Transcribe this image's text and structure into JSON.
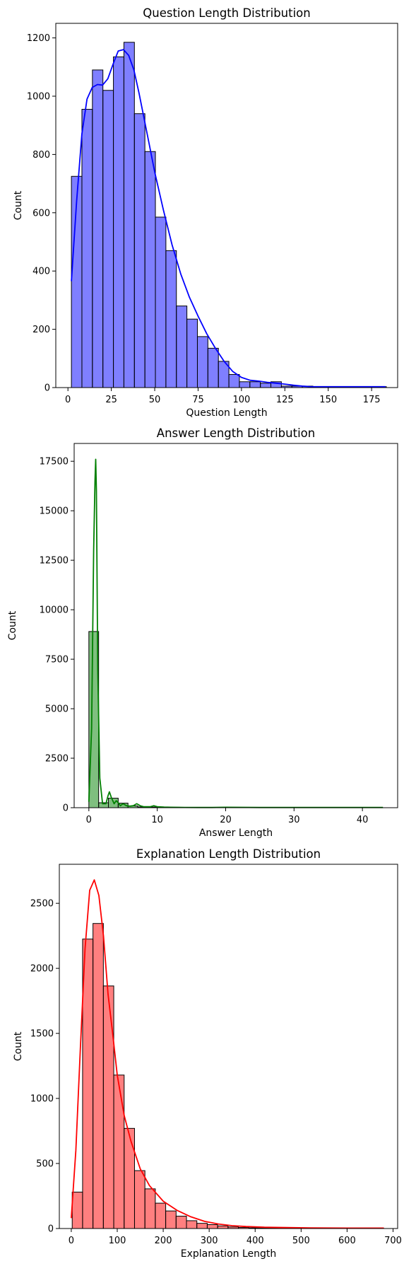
{
  "chart_data": [
    {
      "type": "bar",
      "title": "Question Length Distribution",
      "xlabel": "Question Length",
      "ylabel": "Count",
      "xlim": [
        -7,
        190
      ],
      "ylim": [
        0,
        1250
      ],
      "xticks": [
        0,
        25,
        50,
        75,
        100,
        125,
        150,
        175
      ],
      "yticks": [
        0,
        200,
        400,
        600,
        800,
        1000,
        1200
      ],
      "bin_start": 2,
      "bin_width": 6.05,
      "values": [
        725,
        955,
        1090,
        1020,
        1135,
        1185,
        940,
        810,
        585,
        470,
        280,
        235,
        175,
        135,
        90,
        45,
        20,
        20,
        15,
        20,
        5,
        5,
        5,
        3,
        3,
        3,
        2,
        3,
        3,
        3
      ],
      "color": "#0000ff",
      "kde": {
        "x": [
          2,
          5,
          8,
          11,
          14,
          17,
          20,
          23,
          26,
          29,
          32,
          35,
          38,
          41,
          44,
          47,
          50,
          55,
          60,
          65,
          70,
          75,
          80,
          85,
          90,
          95,
          100,
          105,
          110,
          115,
          120,
          125,
          130,
          135,
          140,
          150,
          160,
          170,
          183
        ],
        "y": [
          365,
          640,
          870,
          990,
          1030,
          1040,
          1038,
          1060,
          1110,
          1155,
          1160,
          1140,
          1090,
          1010,
          920,
          830,
          740,
          610,
          490,
          390,
          310,
          245,
          185,
          135,
          90,
          55,
          35,
          25,
          22,
          18,
          15,
          12,
          8,
          5,
          3,
          3,
          3,
          3,
          3
        ]
      }
    },
    {
      "type": "bar",
      "title": "Answer Length Distribution",
      "xlabel": "Answer Length",
      "ylabel": "Count",
      "xlim": [
        -2.15,
        45.15
      ],
      "ylim": [
        0,
        18400
      ],
      "xticks": [
        0,
        10,
        20,
        30,
        40
      ],
      "yticks": [
        0,
        2500,
        5000,
        7500,
        10000,
        12500,
        15000,
        17500
      ],
      "bin_start": 0,
      "bin_width": 1.43,
      "values": [
        8900,
        250,
        480,
        230,
        90,
        40,
        30,
        15,
        10,
        8,
        5,
        4,
        3,
        3,
        2,
        2,
        2,
        2,
        1,
        1,
        1,
        1,
        1,
        1,
        1,
        1,
        1,
        1,
        1,
        1
      ],
      "color": "#008000",
      "kde": {
        "x": [
          0,
          0.4,
          0.7,
          0.9,
          1.0,
          1.1,
          1.3,
          1.6,
          2.0,
          2.5,
          2.8,
          3.0,
          3.3,
          3.7,
          4.0,
          4.3,
          4.6,
          5.0,
          5.5,
          6.0,
          6.5,
          7.0,
          7.5,
          8.0,
          9.0,
          9.5,
          10.0,
          11,
          12,
          14,
          16,
          18,
          20,
          25,
          30,
          35,
          43
        ],
        "y": [
          300,
          4000,
          13000,
          16500,
          17600,
          16000,
          7000,
          1500,
          200,
          200,
          600,
          800,
          500,
          200,
          350,
          250,
          100,
          200,
          100,
          80,
          100,
          200,
          100,
          50,
          50,
          100,
          50,
          30,
          20,
          15,
          10,
          10,
          20,
          10,
          10,
          10,
          10
        ]
      }
    },
    {
      "type": "bar",
      "title": "Explanation Length Distribution",
      "xlabel": "Explanation Length",
      "ylabel": "Count",
      "xlim": [
        -26,
        710
      ],
      "ylim": [
        0,
        2800
      ],
      "xticks": [
        0,
        100,
        200,
        300,
        400,
        500,
        600,
        700
      ],
      "yticks": [
        0,
        500,
        1000,
        1500,
        2000,
        2500
      ],
      "bin_start": 2,
      "bin_width": 22.6,
      "values": [
        280,
        2225,
        2345,
        1865,
        1180,
        770,
        445,
        305,
        195,
        135,
        95,
        60,
        40,
        30,
        20,
        12,
        8,
        5,
        4,
        3,
        2,
        2,
        2,
        1,
        1,
        1,
        1,
        1,
        1,
        1
      ],
      "color": "#ff0000",
      "kde": {
        "x": [
          0,
          10,
          20,
          30,
          40,
          50,
          60,
          70,
          80,
          90,
          100,
          115,
          130,
          150,
          170,
          200,
          230,
          260,
          290,
          320,
          350,
          380,
          420,
          470,
          520,
          600,
          680
        ],
        "y": [
          80,
          600,
          1400,
          2150,
          2600,
          2680,
          2560,
          2250,
          1800,
          1500,
          1180,
          870,
          670,
          460,
          330,
          210,
          140,
          90,
          55,
          35,
          22,
          15,
          10,
          7,
          5,
          3,
          3
        ]
      }
    }
  ]
}
